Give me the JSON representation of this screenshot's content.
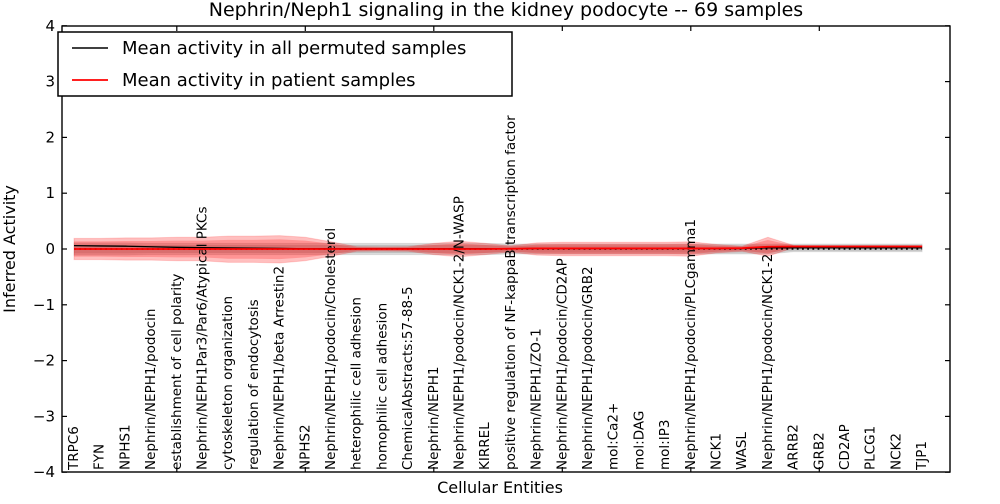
{
  "chart_data": {
    "type": "line",
    "title": "Nephrin/Neph1 signaling in the kidney podocyte -- 69 samples",
    "xlabel": "Cellular Entities",
    "ylabel": "Inferred Activity",
    "ylim": [
      -4,
      4
    ],
    "yticks": [
      4,
      3,
      2,
      1,
      0,
      -1,
      -2,
      -3,
      -4
    ],
    "xtick_entity_indices": [
      4,
      9,
      14,
      19,
      24,
      29
    ],
    "grid": false,
    "zero_line": {
      "value": 0,
      "style": "dotted",
      "color": "#000000"
    },
    "legend": {
      "position": "upper-left",
      "entries": [
        {
          "label": "Mean activity in all permuted samples",
          "color": "#000000"
        },
        {
          "label": "Mean activity in patient samples",
          "color": "#ff0000"
        }
      ]
    },
    "categories": [
      "TRPC6",
      "FYN",
      "NPHS1",
      "Nephrin/NEPH1/podocin",
      "establishment of cell polarity",
      "Nephrin/NEPH1Par3/Par6/Atypical PKCs",
      "cytoskeleton organization",
      "regulation of endocytosis",
      "Nephrin/NEPH1/beta Arrestin2",
      "NPHS2",
      "Nephrin/NEPH1/podocin/Cholesterol",
      "heterophilic cell adhesion",
      "homophilic cell adhesion",
      "ChemicalAbstracts:57-88-5",
      "Nephrin/NEPH1",
      "Nephrin/NEPH1/podocin/NCK1-2/N-WASP",
      "KIRREL",
      "positive regulation of NF-kappaB transcription factor",
      "Nephrin/NEPH1/ZO-1",
      "Nephrin/NEPH1/podocin/CD2AP",
      "Nephrin/NEPH1/podocin/GRB2",
      "mol:Ca2+",
      "mol:DAG",
      "mol:IP3",
      "Nephrin/NEPH1/podocin/PLCgamma1",
      "NCK1",
      "WASL",
      "Nephrin/NEPH1/podocin/NCK1-2",
      "ARRB2",
      "GRB2",
      "CD2AP",
      "PLCG1",
      "NCK2",
      "TJP1"
    ],
    "series": [
      {
        "name": "Mean activity in all permuted samples",
        "color": "#000000",
        "width": 1.3,
        "values": [
          0.06,
          0.055,
          0.05,
          0.04,
          0.03,
          0.025,
          0.02,
          0.015,
          0.01,
          0.005,
          0.005,
          0.005,
          0.005,
          0.005,
          0.005,
          0.005,
          0.005,
          0.005,
          0.01,
          0.01,
          0.01,
          0.01,
          0.01,
          0.01,
          0.015,
          0.01,
          0.01,
          0.02,
          0.02,
          0.02,
          0.02,
          0.02,
          0.02,
          0.02
        ]
      },
      {
        "name": "Mean activity in patient samples",
        "color": "#ff0000",
        "width": 1.8,
        "values": [
          0.0,
          0.0,
          0.0,
          0.0,
          0.0,
          0.0,
          0.0,
          0.0,
          0.0,
          0.0,
          0.0,
          0.0,
          0.0,
          0.0,
          0.0,
          0.0,
          0.0,
          0.005,
          0.01,
          0.01,
          0.01,
          0.01,
          0.01,
          0.01,
          0.01,
          0.01,
          0.015,
          0.04,
          0.045,
          0.045,
          0.045,
          0.045,
          0.045,
          0.045
        ]
      }
    ],
    "bands": [
      {
        "name": "permuted-samples-std-band",
        "color": "#000000",
        "opacity": 0.14,
        "upper": [
          0.11,
          0.11,
          0.11,
          0.1,
          0.1,
          0.1,
          0.1,
          0.1,
          0.1,
          0.1,
          0.1,
          0.1,
          0.1,
          0.1,
          0.1,
          0.1,
          0.1,
          0.09,
          0.09,
          0.09,
          0.09,
          0.09,
          0.09,
          0.09,
          0.09,
          0.09,
          0.09,
          0.09,
          0.09,
          0.09,
          0.09,
          0.09,
          0.09,
          0.09
        ],
        "lower": [
          -0.11,
          -0.11,
          -0.11,
          -0.1,
          -0.1,
          -0.1,
          -0.1,
          -0.1,
          -0.1,
          -0.1,
          -0.1,
          -0.1,
          -0.1,
          -0.1,
          -0.1,
          -0.1,
          -0.1,
          -0.09,
          -0.09,
          -0.09,
          -0.09,
          -0.09,
          -0.09,
          -0.09,
          -0.09,
          -0.09,
          -0.09,
          -0.09,
          -0.05,
          -0.05,
          -0.05,
          -0.05,
          -0.05,
          -0.05
        ]
      },
      {
        "name": "patient-samples-std-band",
        "color": "#ff0000",
        "opacity": 0.25,
        "upper": [
          0.19,
          0.19,
          0.2,
          0.2,
          0.21,
          0.21,
          0.23,
          0.23,
          0.24,
          0.21,
          0.13,
          0.04,
          0.035,
          0.04,
          0.1,
          0.14,
          0.1,
          0.055,
          0.11,
          0.12,
          0.12,
          0.12,
          0.12,
          0.12,
          0.13,
          0.08,
          0.05,
          0.21,
          0.065,
          0.06,
          0.06,
          0.06,
          0.06,
          0.06
        ],
        "lower": [
          -0.19,
          -0.19,
          -0.2,
          -0.2,
          -0.21,
          -0.21,
          -0.24,
          -0.24,
          -0.25,
          -0.21,
          -0.13,
          -0.04,
          -0.035,
          -0.04,
          -0.1,
          -0.14,
          -0.1,
          -0.055,
          -0.11,
          -0.12,
          -0.12,
          -0.12,
          -0.12,
          -0.12,
          -0.13,
          -0.07,
          -0.04,
          -0.13,
          0.025,
          0.03,
          0.03,
          0.03,
          0.03,
          0.03
        ]
      }
    ]
  }
}
